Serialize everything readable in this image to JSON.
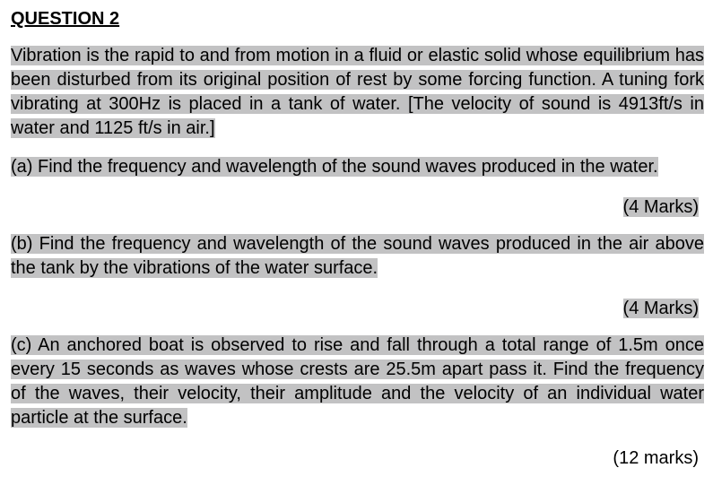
{
  "title": "QUESTION 2",
  "intro": "Vibration is the rapid to and from motion in a fluid or elastic solid whose equilibrium has been disturbed from its original position of rest by some forcing function. A tuning fork vibrating at 300Hz is placed in a tank of water. [The velocity of sound is 4913ft/s in water and 1125 ft/s in air.]",
  "parts": {
    "a": {
      "text": "(a)  Find the frequency and wavelength of the sound waves produced in the water.",
      "marks": "(4 Marks)"
    },
    "b": {
      "text": "(b)  Find the frequency and wavelength of the sound waves produced in the air above the tank by the vibrations of the water surface.",
      "marks": "(4 Marks)"
    },
    "c": {
      "text": "(c)  An anchored boat is observed to rise and fall through a total range of 1.5m once every 15 seconds as waves whose crests are 25.5m apart pass it. Find the frequency of the waves, their velocity, their amplitude and the velocity of an individual water particle at the surface.",
      "marks": "(12 marks)"
    }
  },
  "colors": {
    "highlight": "#c2c2c3",
    "text": "#000000",
    "background": "#ffffff"
  },
  "font": {
    "family": "Arial",
    "body_size_pt": 15,
    "title_weight": "bold"
  }
}
